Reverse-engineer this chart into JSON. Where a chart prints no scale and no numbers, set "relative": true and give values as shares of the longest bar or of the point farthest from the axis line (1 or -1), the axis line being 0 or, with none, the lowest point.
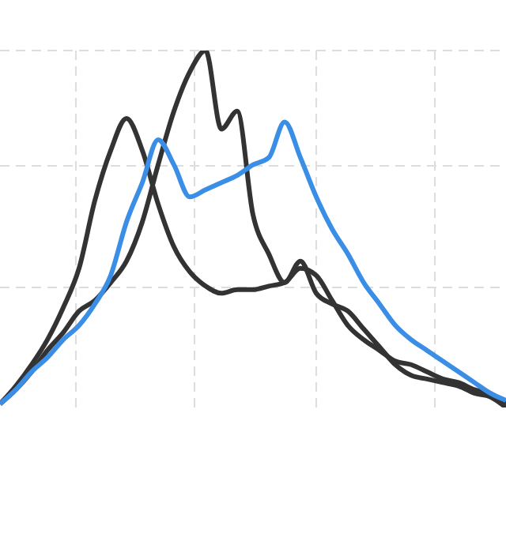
{
  "chart_data": {
    "type": "line",
    "relative": true,
    "grid": true,
    "marker": "none",
    "line_style": "solid",
    "categories": [
      null,
      null,
      null,
      null,
      null,
      null,
      null,
      null,
      null,
      null,
      null,
      null,
      null,
      null,
      null,
      null,
      null,
      null,
      null,
      null,
      null,
      null,
      null,
      null,
      null,
      null,
      null,
      null,
      null,
      null,
      null,
      null,
      null
    ],
    "series": [
      {
        "color": "#333333",
        "values": [
          0.01,
          0.06,
          0.12,
          0.19,
          0.28,
          0.39,
          0.58,
          0.72,
          0.81,
          0.72,
          0.57,
          0.45,
          0.38,
          0.34,
          0.32,
          0.33,
          0.33,
          0.34,
          0.35,
          0.39,
          0.37,
          0.3,
          0.23,
          0.19,
          0.16,
          0.13,
          0.12,
          0.1,
          0.08,
          0.07,
          0.05,
          0.04,
          0.01
        ]
      },
      {
        "color": "#333333",
        "values": [
          0.01,
          0.05,
          0.1,
          0.16,
          0.21,
          0.27,
          0.3,
          0.35,
          0.41,
          0.52,
          0.68,
          0.83,
          0.94,
          1.0,
          0.78,
          0.83,
          0.54,
          0.43,
          0.35,
          0.41,
          0.32,
          0.29,
          0.27,
          0.22,
          0.17,
          0.12,
          0.09,
          0.08,
          0.07,
          0.06,
          0.04,
          0.03,
          0
        ]
      },
      {
        "color": "#3a8ee6",
        "values": [
          0.01,
          0.05,
          0.1,
          0.14,
          0.19,
          0.23,
          0.29,
          0.37,
          0.52,
          0.63,
          0.75,
          0.68,
          0.59,
          0.61,
          0.63,
          0.65,
          0.68,
          0.7,
          0.8,
          0.7,
          0.59,
          0.5,
          0.43,
          0.35,
          0.29,
          0.23,
          0.19,
          0.16,
          0.13,
          0.1,
          0.07,
          0.04,
          0.02
        ]
      }
    ]
  }
}
